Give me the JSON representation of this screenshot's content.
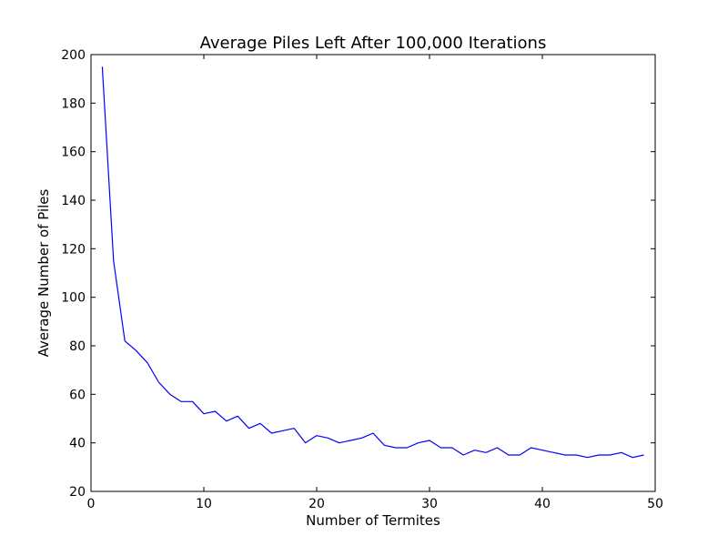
{
  "chart_data": {
    "type": "line",
    "title": "Average Piles Left After 100,000 Iterations",
    "xlabel": "Number of Termites",
    "ylabel": "Average Number of Piles",
    "xlim": [
      0,
      50
    ],
    "ylim": [
      20,
      200
    ],
    "xticks": [
      0,
      10,
      20,
      30,
      40,
      50
    ],
    "yticks": [
      20,
      40,
      60,
      80,
      100,
      120,
      140,
      160,
      180,
      200
    ],
    "grid": false,
    "series": [
      {
        "color": "#0000ff",
        "x": [
          1,
          2,
          3,
          4,
          5,
          6,
          7,
          8,
          9,
          10,
          11,
          12,
          13,
          14,
          15,
          16,
          17,
          18,
          19,
          20,
          21,
          22,
          23,
          24,
          25,
          26,
          27,
          28,
          29,
          30,
          31,
          32,
          33,
          34,
          35,
          36,
          37,
          38,
          39,
          40,
          41,
          42,
          43,
          44,
          45,
          46,
          47,
          48,
          49
        ],
        "y": [
          195,
          115,
          82,
          78,
          73,
          65,
          60,
          57,
          57,
          52,
          53,
          49,
          51,
          46,
          48,
          44,
          45,
          46,
          40,
          43,
          42,
          40,
          41,
          42,
          44,
          39,
          38,
          38,
          40,
          41,
          38,
          38,
          35,
          37,
          36,
          38,
          35,
          35,
          38,
          37,
          36,
          35,
          35,
          34,
          35,
          35,
          36,
          34,
          35
        ]
      }
    ]
  }
}
